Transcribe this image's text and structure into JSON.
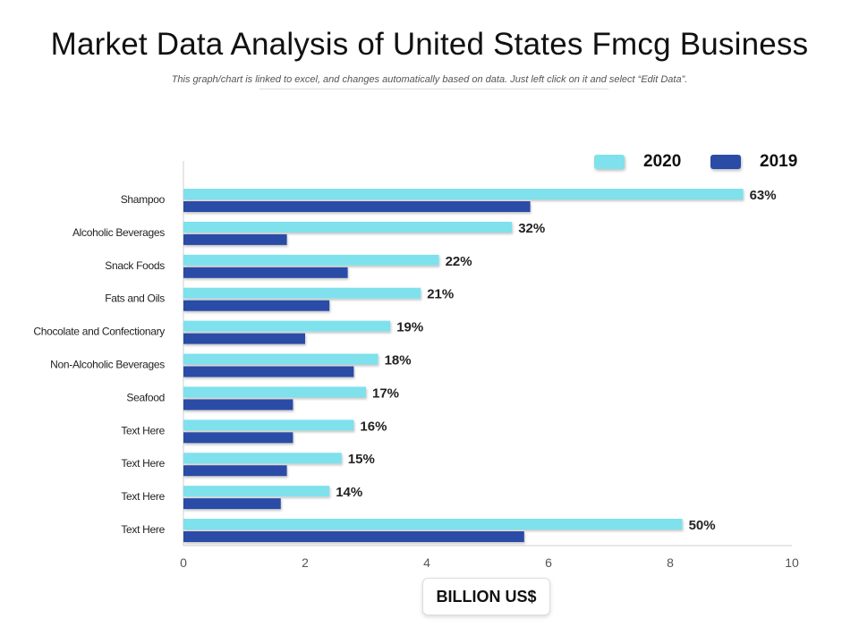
{
  "page": {
    "title": "Market Data Analysis of United States Fmcg Business",
    "subtitle": "This graph/chart is linked to excel, and changes automatically  based on data.  Just left click on it and select “Edit Data”."
  },
  "chart_data": {
    "type": "bar",
    "orientation": "horizontal",
    "title": "Market Data Analysis of United States Fmcg Business",
    "xlabel": "BILLION US$",
    "ylabel": "",
    "xlim": [
      0,
      10
    ],
    "xticks": [
      "0",
      "2",
      "4",
      "6",
      "8",
      "10"
    ],
    "grid": false,
    "legend_position": "top-right",
    "categories": [
      "Shampoo",
      "Alcoholic Beverages",
      "Snack Foods",
      "Fats and Oils",
      "Chocolate and Confectionary",
      "Non-Alcoholic Beverages",
      "Seafood",
      "Text Here",
      "Text Here",
      "Text Here",
      "Text Here"
    ],
    "series": [
      {
        "name": "2020",
        "color": "#7EE1EC",
        "values": [
          9.2,
          5.4,
          4.2,
          3.9,
          3.4,
          3.2,
          3.0,
          2.8,
          2.6,
          2.4,
          8.2
        ],
        "data_labels": [
          "63%",
          "32%",
          "22%",
          "21%",
          "19%",
          "18%",
          "17%",
          "16%",
          "15%",
          "14%",
          "50%"
        ]
      },
      {
        "name": "2019",
        "color": "#2A4BA6",
        "values": [
          5.7,
          1.7,
          2.7,
          2.4,
          2.0,
          2.8,
          1.8,
          1.8,
          1.7,
          1.6,
          5.6
        ]
      }
    ]
  }
}
